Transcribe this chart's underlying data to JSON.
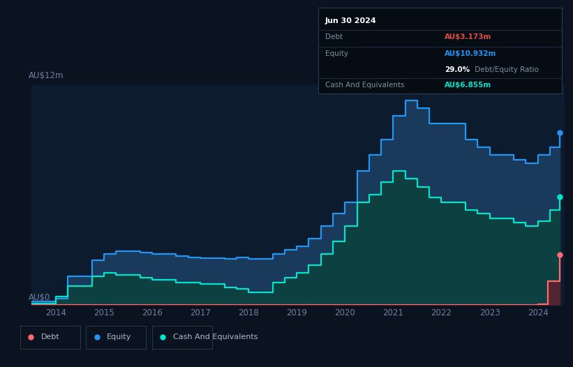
{
  "bg_color": "#0c1320",
  "plot_bg_color": "#0c1b2e",
  "ylabel": "AU$12m",
  "y0_label": "AU$0",
  "ylim": [
    0,
    14
  ],
  "equity_color": "#2196f3",
  "equity_fill_color": "#1a3a5c",
  "cash_color": "#00e5cc",
  "cash_fill_color": "#0d4040",
  "debt_color": "#ff6b6b",
  "debt_fill_color": "#5a2030",
  "grid_color": "#1a2a40",
  "equity_data": {
    "years": [
      2013.5,
      2014.0,
      2014.25,
      2014.75,
      2015.0,
      2015.25,
      2015.75,
      2016.0,
      2016.5,
      2016.75,
      2017.0,
      2017.5,
      2017.75,
      2018.0,
      2018.5,
      2018.75,
      2019.0,
      2019.25,
      2019.5,
      2019.75,
      2020.0,
      2020.25,
      2020.5,
      2020.75,
      2021.0,
      2021.25,
      2021.5,
      2021.75,
      2022.0,
      2022.5,
      2022.75,
      2023.0,
      2023.5,
      2023.75,
      2024.0,
      2024.25,
      2024.45
    ],
    "values": [
      0.2,
      0.4,
      1.8,
      2.8,
      3.2,
      3.4,
      3.3,
      3.2,
      3.1,
      3.0,
      2.95,
      2.9,
      3.0,
      2.9,
      3.2,
      3.5,
      3.7,
      4.2,
      5.0,
      5.8,
      6.5,
      8.5,
      9.5,
      10.5,
      12.0,
      13.0,
      12.5,
      11.5,
      11.5,
      10.5,
      10.0,
      9.5,
      9.2,
      9.0,
      9.5,
      10.0,
      10.932
    ]
  },
  "cash_data": {
    "years": [
      2013.5,
      2014.0,
      2014.25,
      2014.75,
      2015.0,
      2015.25,
      2015.75,
      2016.0,
      2016.5,
      2016.75,
      2017.0,
      2017.5,
      2017.75,
      2018.0,
      2018.5,
      2018.75,
      2019.0,
      2019.25,
      2019.5,
      2019.75,
      2020.0,
      2020.25,
      2020.5,
      2020.75,
      2021.0,
      2021.25,
      2021.5,
      2021.75,
      2022.0,
      2022.5,
      2022.75,
      2023.0,
      2023.5,
      2023.75,
      2024.0,
      2024.25,
      2024.45
    ],
    "values": [
      0.05,
      0.5,
      1.2,
      1.8,
      2.0,
      1.9,
      1.7,
      1.6,
      1.4,
      1.4,
      1.3,
      1.1,
      1.0,
      0.8,
      1.4,
      1.7,
      2.0,
      2.5,
      3.2,
      4.0,
      5.0,
      6.5,
      7.0,
      7.8,
      8.5,
      8.0,
      7.5,
      6.8,
      6.5,
      6.0,
      5.8,
      5.5,
      5.2,
      5.0,
      5.3,
      6.0,
      6.855
    ]
  },
  "debt_data": {
    "years": [
      2013.5,
      2023.95,
      2024.0,
      2024.2,
      2024.45
    ],
    "values": [
      0.0,
      0.0,
      0.02,
      1.5,
      3.173
    ]
  },
  "x_ticks": [
    2014,
    2015,
    2016,
    2017,
    2018,
    2019,
    2020,
    2021,
    2022,
    2023,
    2024
  ],
  "x_labels": [
    "2014",
    "2015",
    "2016",
    "2017",
    "2018",
    "2019",
    "2020",
    "2021",
    "2022",
    "2023",
    "2024"
  ],
  "tooltip": {
    "date": "Jun 30 2024",
    "debt_label": "Debt",
    "debt_value": "AU$3.173m",
    "debt_color": "#e05040",
    "equity_label": "Equity",
    "equity_value": "AU$10.932m",
    "equity_color": "#2196f3",
    "ratio_label": "29.0%",
    "ratio_text": " Debt/Equity Ratio",
    "ratio_color": "#ffffff",
    "cash_label": "Cash And Equivalents",
    "cash_value": "AU$6.855m",
    "cash_color": "#00e5cc",
    "label_color": "#8090a0",
    "header_color": "#ffffff",
    "bg_color": "#060c14",
    "border_color": "#2a3a50"
  },
  "legend": [
    {
      "label": "Debt",
      "color": "#ff6b6b"
    },
    {
      "label": "Equity",
      "color": "#2196f3"
    },
    {
      "label": "Cash And Equivalents",
      "color": "#00e5cc"
    }
  ]
}
